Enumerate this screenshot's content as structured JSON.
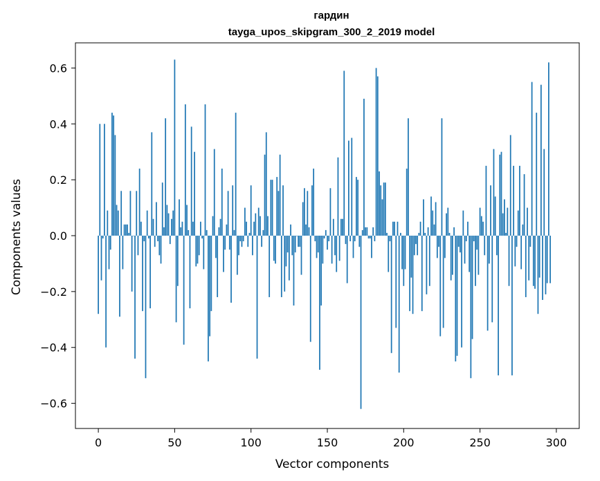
{
  "chart_data": {
    "type": "bar",
    "title": "гардин",
    "subtitle": "tayga_upos_skipgram_300_2_2019 model",
    "xlabel": "Vector components",
    "ylabel": "Components values",
    "xlim": [
      -15,
      315
    ],
    "ylim": [
      -0.69,
      0.69
    ],
    "xticks": [
      0,
      50,
      100,
      150,
      200,
      250,
      300
    ],
    "xtick_labels": [
      "0",
      "50",
      "100",
      "150",
      "200",
      "250",
      "300"
    ],
    "yticks": [
      -0.6,
      -0.4,
      -0.2,
      0.0,
      0.2,
      0.4,
      0.6
    ],
    "ytick_labels": [
      "−0.6",
      "−0.4",
      "−0.2",
      "0.0",
      "0.2",
      "0.4",
      "0.6"
    ],
    "grid": false,
    "bar_color": "#1f77b4",
    "values": [
      -0.28,
      0.4,
      -0.16,
      -0.01,
      0.4,
      -0.4,
      0.09,
      -0.12,
      -0.05,
      0.44,
      0.43,
      0.36,
      0.11,
      0.09,
      -0.29,
      0.16,
      -0.12,
      0.04,
      0.04,
      0.04,
      0.01,
      0.16,
      -0.2,
      0.0,
      -0.44,
      0.16,
      -0.07,
      0.24,
      0.05,
      -0.27,
      -0.02,
      -0.51,
      0.09,
      -0.01,
      -0.26,
      0.37,
      0.06,
      -0.04,
      0.12,
      -0.02,
      -0.07,
      -0.1,
      0.19,
      0.03,
      0.42,
      0.11,
      0.08,
      -0.03,
      0.06,
      0.09,
      0.63,
      -0.31,
      -0.18,
      0.13,
      0.03,
      0.05,
      -0.39,
      0.47,
      0.11,
      0.02,
      -0.26,
      0.39,
      0.05,
      0.3,
      -0.11,
      -0.1,
      -0.07,
      0.05,
      -0.01,
      -0.12,
      0.47,
      0.02,
      -0.45,
      -0.36,
      -0.27,
      0.07,
      0.31,
      -0.08,
      -0.22,
      0.03,
      0.06,
      0.24,
      -0.13,
      -0.05,
      0.04,
      0.16,
      -0.05,
      -0.24,
      0.18,
      0.02,
      0.44,
      -0.14,
      -0.07,
      -0.02,
      -0.04,
      -0.02,
      0.1,
      0.05,
      -0.04,
      0.01,
      0.18,
      -0.07,
      0.05,
      0.08,
      -0.44,
      0.1,
      0.07,
      -0.04,
      0.02,
      0.29,
      0.37,
      0.07,
      -0.22,
      0.2,
      0.2,
      -0.09,
      -0.1,
      0.21,
      0.16,
      0.29,
      -0.22,
      0.18,
      -0.2,
      -0.11,
      -0.06,
      -0.16,
      0.04,
      -0.07,
      -0.25,
      -0.06,
      0.0,
      -0.04,
      -0.04,
      -0.14,
      0.12,
      0.17,
      0.04,
      0.16,
      0.03,
      -0.38,
      0.18,
      0.24,
      -0.02,
      -0.08,
      -0.06,
      -0.48,
      -0.25,
      -0.1,
      -0.01,
      0.02,
      -0.05,
      -0.02,
      0.17,
      -0.1,
      0.06,
      -0.07,
      -0.13,
      0.28,
      -0.09,
      0.06,
      0.06,
      0.59,
      -0.03,
      -0.17,
      0.34,
      -0.02,
      0.35,
      -0.08,
      -0.02,
      0.21,
      0.2,
      -0.04,
      -0.62,
      0.02,
      0.49,
      0.03,
      0.03,
      -0.01,
      -0.01,
      -0.08,
      0.03,
      -0.02,
      0.6,
      0.57,
      0.23,
      0.18,
      0.13,
      0.19,
      0.19,
      0.01,
      -0.13,
      -0.02,
      -0.42,
      0.05,
      0.05,
      -0.33,
      0.05,
      -0.49,
      0.01,
      -0.12,
      -0.18,
      -0.12,
      0.24,
      0.42,
      -0.27,
      -0.15,
      -0.28,
      -0.07,
      -0.03,
      -0.07,
      0.01,
      0.05,
      -0.27,
      0.13,
      0.01,
      -0.21,
      0.03,
      -0.18,
      0.14,
      0.09,
      0.04,
      0.12,
      -0.08,
      -0.04,
      -0.36,
      0.42,
      -0.33,
      -0.08,
      0.08,
      0.1,
      0.01,
      -0.16,
      -0.14,
      0.03,
      -0.45,
      -0.43,
      -0.04,
      -0.06,
      -0.4,
      0.09,
      -0.1,
      -0.02,
      0.05,
      -0.13,
      -0.51,
      -0.37,
      -0.02,
      -0.18,
      -0.05,
      -0.14,
      0.1,
      0.07,
      0.05,
      -0.07,
      0.25,
      -0.34,
      -0.1,
      0.18,
      -0.31,
      0.31,
      0.14,
      -0.07,
      -0.5,
      0.29,
      0.3,
      0.08,
      0.13,
      0.01,
      0.1,
      -0.18,
      0.36,
      -0.5,
      0.25,
      -0.11,
      -0.04,
      0.09,
      0.25,
      -0.12,
      0.04,
      0.22,
      -0.22,
      0.1,
      -0.16,
      -0.04,
      0.55,
      -0.18,
      -0.19,
      0.44,
      -0.28,
      -0.15,
      0.54,
      -0.23,
      0.31,
      -0.21,
      -0.17,
      0.62,
      -0.17
    ]
  }
}
